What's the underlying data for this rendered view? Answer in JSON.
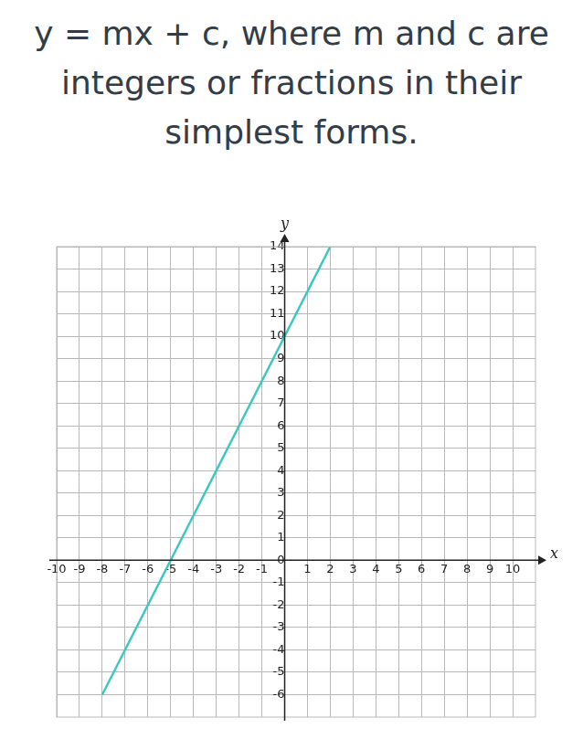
{
  "chart_data": {
    "type": "line",
    "title": "y = mx + c, where m and c are integers or fractions in their simplest forms.",
    "xlabel": "x",
    "ylabel": "y",
    "series": [
      {
        "x": [
          -8,
          2
        ],
        "values": [
          -6,
          14
        ],
        "color": "#3cc8c0",
        "marker": "none",
        "line_style": "solid"
      }
    ],
    "xlim": [
      -10,
      11
    ],
    "xticks": [
      -10,
      -9,
      -8,
      -7,
      -6,
      -5,
      -4,
      -3,
      -2,
      -1,
      1,
      2,
      3,
      4,
      5,
      6,
      7,
      8,
      9,
      10
    ],
    "ylim": [
      -7,
      14
    ],
    "yticks": [
      -6,
      -5,
      -4,
      -3,
      -2,
      -1,
      0,
      1,
      2,
      3,
      4,
      5,
      6,
      7,
      8,
      9,
      10,
      11,
      12,
      13,
      14
    ],
    "grid": true
  }
}
